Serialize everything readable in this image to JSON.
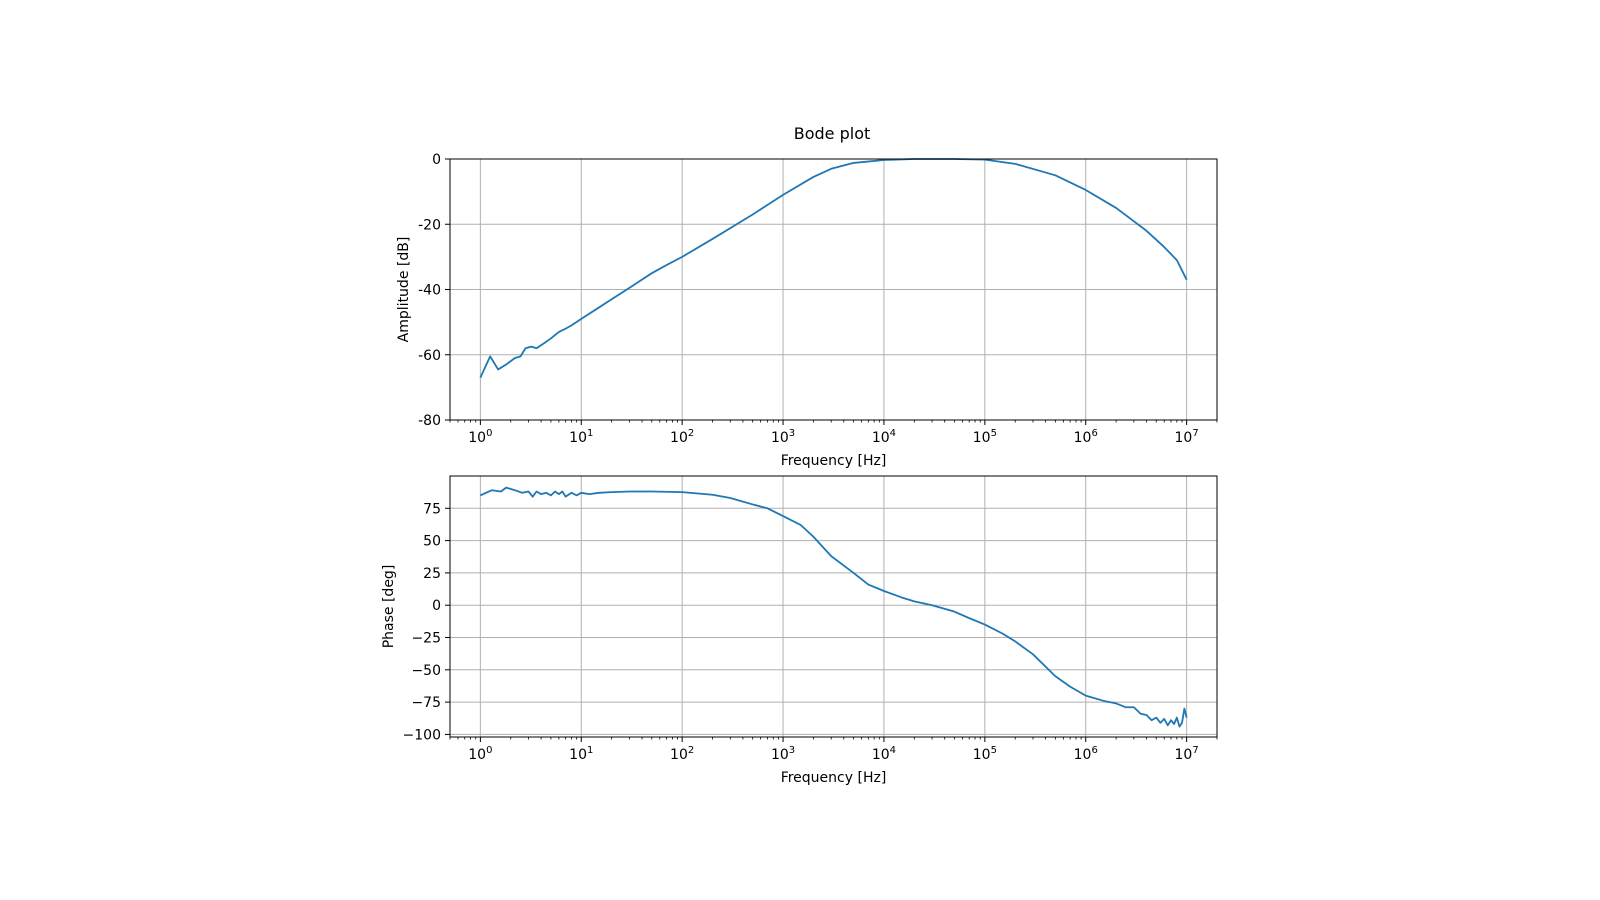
{
  "figure": {
    "title": "Bode plot"
  },
  "chart_data": [
    {
      "type": "line",
      "ylabel": "Amplitude [dB]",
      "xlabel": "Frequency [Hz]",
      "xscale": "log",
      "xlim": [
        0.5,
        20000000
      ],
      "ylim": [
        -80,
        0
      ],
      "grid": true,
      "color": "#1f77b4",
      "x_ticks": [
        {
          "value": 1,
          "base": "10",
          "exp": "0"
        },
        {
          "value": 10,
          "base": "10",
          "exp": "1"
        },
        {
          "value": 100,
          "base": "10",
          "exp": "2"
        },
        {
          "value": 1000,
          "base": "10",
          "exp": "3"
        },
        {
          "value": 10000,
          "base": "10",
          "exp": "4"
        },
        {
          "value": 100000,
          "base": "10",
          "exp": "5"
        },
        {
          "value": 1000000,
          "base": "10",
          "exp": "6"
        },
        {
          "value": 10000000,
          "base": "10",
          "exp": "7"
        }
      ],
      "y_ticks": [
        {
          "value": 0,
          "label": "0"
        },
        {
          "value": -20,
          "label": "-20"
        },
        {
          "value": -40,
          "label": "-40"
        },
        {
          "value": -60,
          "label": "-60"
        },
        {
          "value": -80,
          "label": "-80"
        }
      ],
      "series": [
        {
          "x": [
            1,
            1.25,
            1.5,
            1.8,
            2.2,
            2.5,
            2.8,
            3.2,
            3.6,
            4.5,
            5,
            6,
            7,
            8,
            10,
            15,
            20,
            30,
            50,
            70,
            100,
            200,
            500,
            1000,
            2000,
            3000,
            5000,
            10000,
            20000,
            50000,
            100000,
            200000,
            500000,
            1000000,
            2000000,
            4000000,
            6000000,
            8000000,
            10000000
          ],
          "y": [
            -67,
            -60.5,
            -64.5,
            -63,
            -61,
            -60.5,
            -58,
            -57.5,
            -58,
            -56,
            -55,
            -53,
            -52,
            -51,
            -49,
            -45.5,
            -43,
            -39.5,
            -35,
            -32.5,
            -30,
            -24.5,
            -17,
            -11,
            -5.5,
            -3,
            -1.2,
            -0.3,
            0,
            0,
            -0.2,
            -1.5,
            -5,
            -9.5,
            -15,
            -22,
            -27,
            -31,
            -37
          ]
        }
      ]
    },
    {
      "type": "line",
      "ylabel": "Phase [deg]",
      "xlabel": "Frequency [Hz]",
      "xscale": "log",
      "xlim": [
        0.5,
        20000000
      ],
      "ylim": [
        -102,
        100
      ],
      "grid": true,
      "color": "#1f77b4",
      "x_ticks": [
        {
          "value": 1,
          "base": "10",
          "exp": "0"
        },
        {
          "value": 10,
          "base": "10",
          "exp": "1"
        },
        {
          "value": 100,
          "base": "10",
          "exp": "2"
        },
        {
          "value": 1000,
          "base": "10",
          "exp": "3"
        },
        {
          "value": 10000,
          "base": "10",
          "exp": "4"
        },
        {
          "value": 100000,
          "base": "10",
          "exp": "5"
        },
        {
          "value": 1000000,
          "base": "10",
          "exp": "6"
        },
        {
          "value": 10000000,
          "base": "10",
          "exp": "7"
        }
      ],
      "y_ticks": [
        {
          "value": 75,
          "label": "75"
        },
        {
          "value": 50,
          "label": "50"
        },
        {
          "value": 25,
          "label": "25"
        },
        {
          "value": 0,
          "label": "0"
        },
        {
          "value": -25,
          "label": "−25"
        },
        {
          "value": -50,
          "label": "−50"
        },
        {
          "value": -75,
          "label": "−75"
        },
        {
          "value": -100,
          "label": "−100"
        }
      ],
      "series": [
        {
          "x": [
            1,
            1.3,
            1.6,
            1.8,
            2.2,
            2.6,
            3,
            3.3,
            3.6,
            4,
            4.5,
            5,
            5.5,
            6,
            6.5,
            7,
            8,
            9,
            10,
            12,
            15,
            20,
            30,
            50,
            100,
            200,
            300,
            500,
            700,
            1000,
            1500,
            2000,
            3000,
            5000,
            7000,
            10000,
            15000,
            20000,
            30000,
            50000,
            70000,
            100000,
            150000,
            200000,
            300000,
            500000,
            700000,
            1000000,
            1500000,
            2000000,
            2500000,
            3000000,
            3500000,
            4000000,
            4500000,
            5000000,
            5500000,
            6000000,
            6500000,
            7000000,
            7500000,
            8000000,
            8500000,
            9000000,
            9500000,
            10000000
          ],
          "y": [
            85,
            89,
            88,
            91,
            89,
            87,
            88,
            84,
            88,
            86,
            87,
            85,
            88,
            86,
            88,
            84,
            87,
            85,
            87,
            86,
            87,
            87.5,
            88,
            88,
            87.5,
            85.5,
            83,
            78,
            75,
            69,
            62,
            53,
            38,
            25,
            16,
            11,
            6,
            3,
            0,
            -5,
            -10,
            -15,
            -22,
            -28,
            -38,
            -55,
            -63,
            -70,
            -74,
            -76,
            -79,
            -79,
            -84,
            -85,
            -89,
            -87,
            -91,
            -88,
            -93,
            -89,
            -92,
            -87,
            -94,
            -91,
            -80,
            -87
          ]
        }
      ]
    }
  ]
}
